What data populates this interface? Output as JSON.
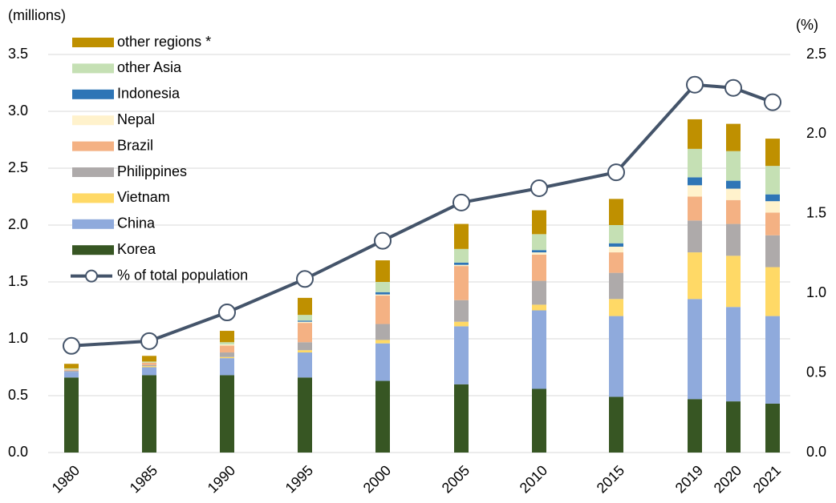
{
  "chart_data": {
    "type": "bar",
    "stacked": true,
    "y_label": "(millions)",
    "y2_label": "(%)",
    "categories": [
      "1980",
      "1985",
      "1990",
      "1995",
      "2000",
      "2005",
      "2010",
      "2015",
      "2019",
      "2020",
      "2021"
    ],
    "ylim": [
      0,
      3.5
    ],
    "yticks": [
      {
        "value": 0,
        "label": "0.0"
      },
      {
        "value": 0.5,
        "label": "0.5"
      },
      {
        "value": 1,
        "label": "1.0"
      },
      {
        "value": 1.5,
        "label": "1.5"
      },
      {
        "value": 2,
        "label": "2.0"
      },
      {
        "value": 2.5,
        "label": "2.5"
      },
      {
        "value": 3,
        "label": "3.0"
      },
      {
        "value": 3.5,
        "label": "3.5"
      }
    ],
    "y2lim": [
      0,
      2.5
    ],
    "y2ticks": [
      {
        "value": 0,
        "label": "0.0"
      },
      {
        "value": 0.5,
        "label": "0.5"
      },
      {
        "value": 1,
        "label": "1.0"
      },
      {
        "value": 1.5,
        "label": "1.5"
      },
      {
        "value": 2,
        "label": "2.0"
      },
      {
        "value": 2.5,
        "label": "2.5"
      }
    ],
    "grid": true,
    "legend": "upper left",
    "series": [
      {
        "name": "Korea",
        "color": "#375623",
        "values": [
          0.66,
          0.68,
          0.68,
          0.66,
          0.63,
          0.6,
          0.56,
          0.49,
          0.47,
          0.45,
          0.43
        ]
      },
      {
        "name": "China",
        "color": "#8faadc",
        "values": [
          0.05,
          0.07,
          0.15,
          0.22,
          0.33,
          0.51,
          0.69,
          0.71,
          0.88,
          0.83,
          0.77
        ]
      },
      {
        "name": "Vietnam",
        "color": "#ffd966",
        "values": [
          0,
          0.01,
          0.01,
          0.02,
          0.03,
          0.04,
          0.05,
          0.15,
          0.41,
          0.45,
          0.43
        ]
      },
      {
        "name": "Philippines",
        "color": "#aeaaaa",
        "values": [
          0.01,
          0.01,
          0.04,
          0.07,
          0.14,
          0.19,
          0.21,
          0.23,
          0.28,
          0.28,
          0.28
        ]
      },
      {
        "name": "Brazil",
        "color": "#f4b183",
        "values": [
          0.01,
          0.02,
          0.06,
          0.17,
          0.25,
          0.3,
          0.23,
          0.18,
          0.21,
          0.21,
          0.2
        ]
      },
      {
        "name": "Nepal",
        "color": "#fff2cc",
        "values": [
          0,
          0,
          0.01,
          0.01,
          0.01,
          0.01,
          0.02,
          0.05,
          0.1,
          0.1,
          0.1
        ]
      },
      {
        "name": "Indonesia",
        "color": "#2e75b6",
        "values": [
          0,
          0,
          0,
          0.01,
          0.02,
          0.02,
          0.02,
          0.03,
          0.07,
          0.07,
          0.06
        ]
      },
      {
        "name": "other Asia",
        "color": "#c5e0b4",
        "values": [
          0.01,
          0.01,
          0.02,
          0.05,
          0.09,
          0.12,
          0.14,
          0.16,
          0.25,
          0.26,
          0.25
        ]
      },
      {
        "name": "other regions *",
        "color": "#bf9000",
        "values": [
          0.04,
          0.05,
          0.1,
          0.15,
          0.19,
          0.22,
          0.21,
          0.23,
          0.26,
          0.24,
          0.24
        ]
      },
      {
        "name": "% of total population",
        "color": "#44546a",
        "type": "line",
        "axis": "y2",
        "values": [
          0.67,
          0.7,
          0.88,
          1.09,
          1.33,
          1.57,
          1.66,
          1.76,
          2.31,
          2.29,
          2.2
        ]
      }
    ]
  }
}
